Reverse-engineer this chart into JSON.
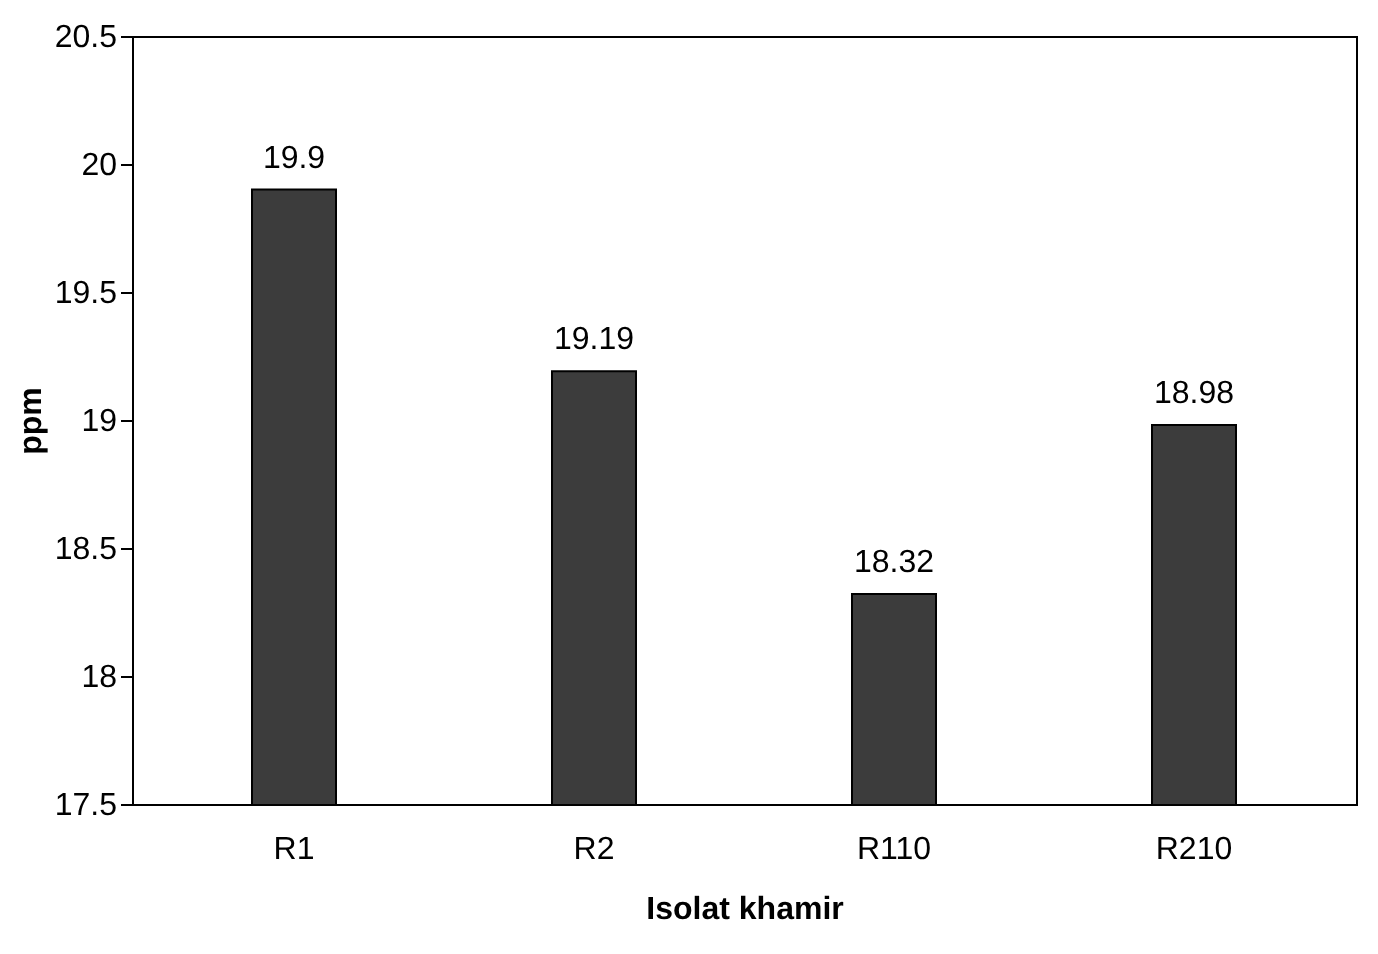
{
  "chart_data": {
    "type": "bar",
    "xlabel": "Isolat khamir",
    "ylabel": "ppm",
    "categories": [
      "R1",
      "R2",
      "R110",
      "R210"
    ],
    "values": [
      19.9,
      19.19,
      18.32,
      18.98
    ],
    "color": "#3c3c3c",
    "ylim": [
      17.5,
      20.5
    ],
    "yticks": [
      17.5,
      18,
      18.5,
      19,
      19.5,
      20,
      20.5
    ],
    "grid": false,
    "data_labels": true
  }
}
